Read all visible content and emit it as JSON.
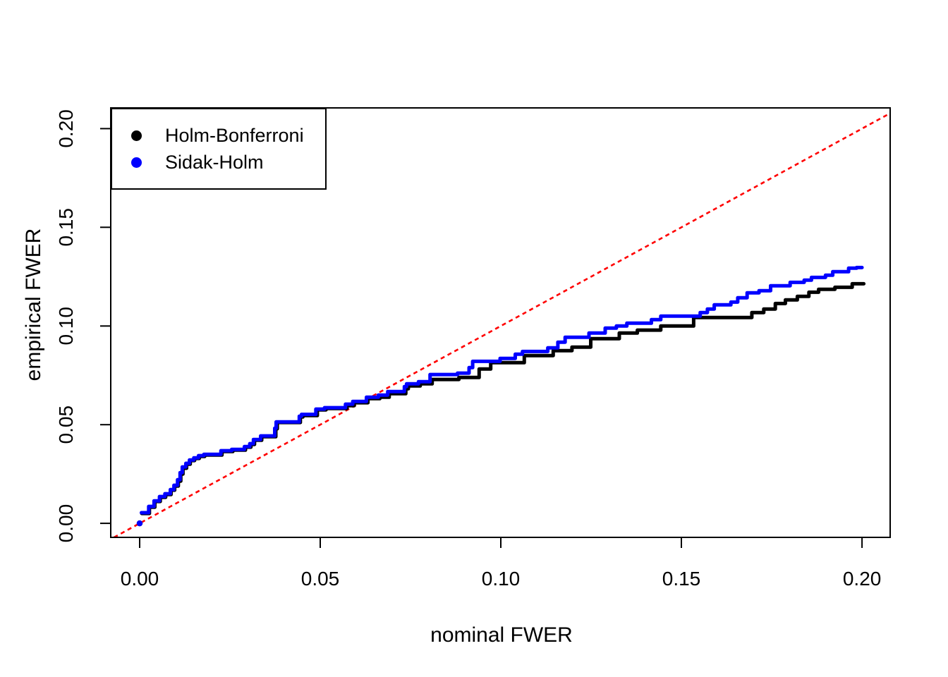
{
  "chart_data": {
    "type": "line",
    "subtype": "step-after",
    "title": "",
    "xlabel": "nominal FWER",
    "ylabel": "empirical FWER",
    "xlim": [
      -0.008,
      0.2078
    ],
    "ylim": [
      -0.0071,
      0.2105
    ],
    "x_ticks": [
      0.0,
      0.05,
      0.1,
      0.15,
      0.2
    ],
    "y_ticks": [
      0.0,
      0.05,
      0.1,
      0.15,
      0.2
    ],
    "x_tick_labels": [
      "0.00",
      "0.05",
      "0.10",
      "0.15",
      "0.20"
    ],
    "y_tick_labels": [
      "0.00",
      "0.05",
      "0.10",
      "0.15",
      "0.20"
    ],
    "grid": false,
    "legend_position": "topleft",
    "reference_line": {
      "label": "identity y = x",
      "color": "#ff0000",
      "style": "dashed",
      "from": [
        -0.0071,
        -0.0071
      ],
      "to": [
        0.2079,
        0.2079
      ]
    },
    "series": [
      {
        "name": "Holm-Bonferroni",
        "color": "#000000",
        "origin_point": [
          0.0,
          0.0
        ],
        "points": [
          [
            0.0006,
            0.005
          ],
          [
            0.0027,
            0.0082
          ],
          [
            0.0042,
            0.0111
          ],
          [
            0.0057,
            0.0132
          ],
          [
            0.0072,
            0.0146
          ],
          [
            0.0087,
            0.0168
          ],
          [
            0.0097,
            0.0189
          ],
          [
            0.0107,
            0.0214
          ],
          [
            0.0114,
            0.025
          ],
          [
            0.012,
            0.0279
          ],
          [
            0.013,
            0.03
          ],
          [
            0.014,
            0.0318
          ],
          [
            0.0152,
            0.0329
          ],
          [
            0.0165,
            0.0339
          ],
          [
            0.018,
            0.0346
          ],
          [
            0.0228,
            0.0364
          ],
          [
            0.0258,
            0.0371
          ],
          [
            0.0293,
            0.0386
          ],
          [
            0.0308,
            0.04
          ],
          [
            0.0318,
            0.0421
          ],
          [
            0.0338,
            0.0439
          ],
          [
            0.0377,
            0.0479
          ],
          [
            0.0381,
            0.0511
          ],
          [
            0.0445,
            0.0539
          ],
          [
            0.0452,
            0.0546
          ],
          [
            0.0492,
            0.0575
          ],
          [
            0.0516,
            0.0582
          ],
          [
            0.0574,
            0.0596
          ],
          [
            0.0594,
            0.0611
          ],
          [
            0.0632,
            0.0632
          ],
          [
            0.0665,
            0.0639
          ],
          [
            0.0691,
            0.0657
          ],
          [
            0.0737,
            0.0682
          ],
          [
            0.0744,
            0.0696
          ],
          [
            0.0777,
            0.0707
          ],
          [
            0.081,
            0.0729
          ],
          [
            0.0884,
            0.0739
          ],
          [
            0.094,
            0.0782
          ],
          [
            0.0972,
            0.0814
          ],
          [
            0.1065,
            0.085
          ],
          [
            0.1145,
            0.0875
          ],
          [
            0.1197,
            0.0893
          ],
          [
            0.1249,
            0.0936
          ],
          [
            0.1328,
            0.0964
          ],
          [
            0.1378,
            0.0979
          ],
          [
            0.1443,
            0.1
          ],
          [
            0.1534,
            0.1043
          ],
          [
            0.1695,
            0.1068
          ],
          [
            0.1728,
            0.1086
          ],
          [
            0.176,
            0.1114
          ],
          [
            0.1788,
            0.1132
          ],
          [
            0.1821,
            0.115
          ],
          [
            0.1853,
            0.1171
          ],
          [
            0.188,
            0.1186
          ],
          [
            0.1925,
            0.1196
          ],
          [
            0.1973,
            0.1214
          ],
          [
            0.2005,
            0.1214
          ]
        ]
      },
      {
        "name": "Sidak-Holm",
        "color": "#0000ff",
        "origin_point": [
          0.0,
          0.0
        ],
        "points": [
          [
            0.0005,
            0.0054
          ],
          [
            0.0025,
            0.0086
          ],
          [
            0.004,
            0.0114
          ],
          [
            0.0055,
            0.0136
          ],
          [
            0.007,
            0.015
          ],
          [
            0.0085,
            0.0171
          ],
          [
            0.0095,
            0.0193
          ],
          [
            0.0105,
            0.0221
          ],
          [
            0.0112,
            0.0257
          ],
          [
            0.0118,
            0.0286
          ],
          [
            0.0128,
            0.0304
          ],
          [
            0.0138,
            0.0321
          ],
          [
            0.015,
            0.0332
          ],
          [
            0.0163,
            0.0343
          ],
          [
            0.0178,
            0.035
          ],
          [
            0.0225,
            0.0368
          ],
          [
            0.0255,
            0.0375
          ],
          [
            0.029,
            0.0389
          ],
          [
            0.0305,
            0.0404
          ],
          [
            0.0315,
            0.0425
          ],
          [
            0.0335,
            0.0443
          ],
          [
            0.0374,
            0.0482
          ],
          [
            0.0378,
            0.0514
          ],
          [
            0.0442,
            0.0543
          ],
          [
            0.0448,
            0.0552
          ],
          [
            0.0488,
            0.0579
          ],
          [
            0.0512,
            0.0586
          ],
          [
            0.057,
            0.0604
          ],
          [
            0.059,
            0.0618
          ],
          [
            0.0628,
            0.0639
          ],
          [
            0.0661,
            0.065
          ],
          [
            0.0687,
            0.0668
          ],
          [
            0.0733,
            0.0693
          ],
          [
            0.0739,
            0.0707
          ],
          [
            0.0772,
            0.0718
          ],
          [
            0.0804,
            0.0754
          ],
          [
            0.088,
            0.0761
          ],
          [
            0.0912,
            0.0789
          ],
          [
            0.0922,
            0.0821
          ],
          [
            0.0998,
            0.0836
          ],
          [
            0.104,
            0.0857
          ],
          [
            0.106,
            0.0871
          ],
          [
            0.113,
            0.0889
          ],
          [
            0.1158,
            0.0918
          ],
          [
            0.1178,
            0.0943
          ],
          [
            0.1244,
            0.0964
          ],
          [
            0.1289,
            0.0989
          ],
          [
            0.132,
            0.1
          ],
          [
            0.1349,
            0.1014
          ],
          [
            0.1417,
            0.1032
          ],
          [
            0.1443,
            0.105
          ],
          [
            0.1552,
            0.1068
          ],
          [
            0.1572,
            0.1086
          ],
          [
            0.1591,
            0.1107
          ],
          [
            0.1637,
            0.1121
          ],
          [
            0.1656,
            0.1143
          ],
          [
            0.1682,
            0.1168
          ],
          [
            0.1715,
            0.1179
          ],
          [
            0.1747,
            0.1204
          ],
          [
            0.1801,
            0.1221
          ],
          [
            0.184,
            0.1232
          ],
          [
            0.186,
            0.1246
          ],
          [
            0.1899,
            0.1257
          ],
          [
            0.1919,
            0.1275
          ],
          [
            0.1963,
            0.1293
          ],
          [
            0.1985,
            0.1296
          ],
          [
            0.2,
            0.1296
          ]
        ]
      }
    ]
  }
}
